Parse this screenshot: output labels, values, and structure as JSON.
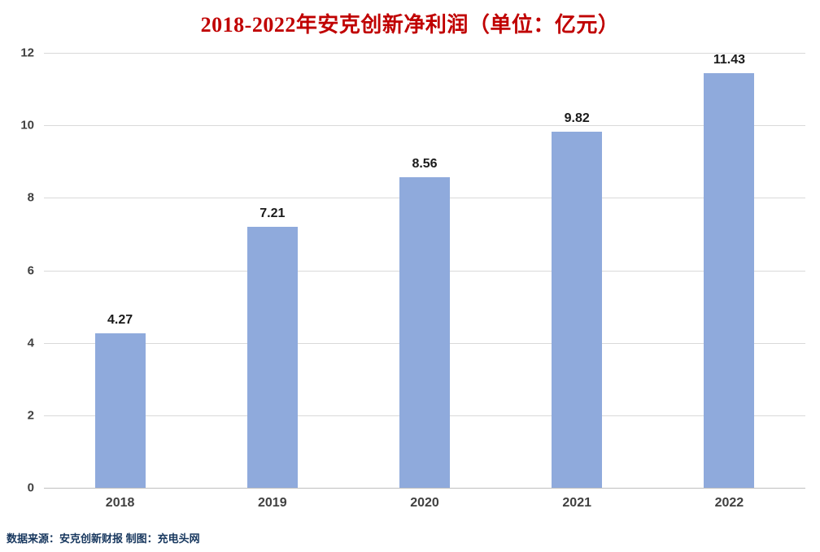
{
  "title": "2018-2022年安克创新净利润（单位：亿元）",
  "source_note": "数据来源：安克创新财报  制图：充电头网",
  "colors": {
    "title": "#C00000",
    "bar": "#8FAADC",
    "grid": "#D9D9D9",
    "baseline": "#BFBFBF",
    "tick_text": "#404040",
    "value_text": "#1a1a1a",
    "source_text": "#17375E"
  },
  "chart_data": {
    "type": "bar",
    "title": "2018-2022年安克创新净利润（单位：亿元）",
    "categories": [
      "2018",
      "2019",
      "2020",
      "2021",
      "2022"
    ],
    "values": [
      4.27,
      7.21,
      8.56,
      9.82,
      11.43
    ],
    "xlabel": "",
    "ylabel": "",
    "ylim": [
      0,
      12
    ],
    "yticks": [
      0,
      2,
      4,
      6,
      8,
      10,
      12
    ],
    "grid": true,
    "legend": false,
    "value_labels": [
      "4.27",
      "7.21",
      "8.56",
      "9.82",
      "11.43"
    ]
  }
}
